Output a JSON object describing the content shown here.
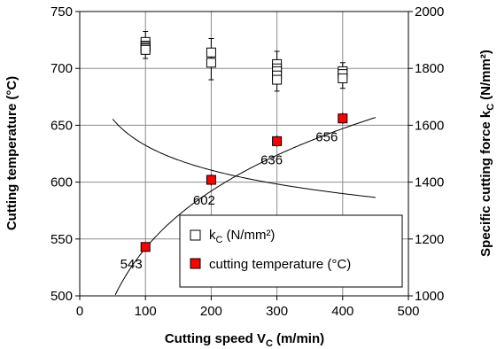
{
  "chart_data": {
    "type": "scatter",
    "xlabel": "Cutting speed V",
    "xlabel_sub": "C",
    "xlabel_unit": "(m/min)",
    "ylabel_left": "Cutting temperature (°C)",
    "ylabel_right": "Specific cutting force k",
    "ylabel_right_sub": "C",
    "ylabel_right_unit": "(N/mm²)",
    "xlim": [
      0,
      500
    ],
    "xticks": [
      "0",
      "100",
      "200",
      "300",
      "400",
      "500"
    ],
    "ylim_left": [
      500,
      750
    ],
    "yticks_left": [
      "500",
      "550",
      "600",
      "650",
      "700",
      "750"
    ],
    "ylim_right": [
      1000,
      2000
    ],
    "yticks_right": [
      "1000",
      "1200",
      "1400",
      "1600",
      "1800",
      "2000"
    ],
    "grid": true,
    "legend_placement": "bottom-right",
    "series": [
      {
        "name": "k",
        "name_sub": "C",
        "name_unit": "(N/mm²)",
        "axis": "right",
        "marker": "open-square",
        "color": "#000000",
        "points": [
          {
            "x": 100,
            "values": [
              1893,
              1880,
              1875,
              1870,
              1865
            ],
            "whisker": [
              1835,
              1930
            ]
          },
          {
            "x": 200,
            "values": [
              1856,
              1820
            ],
            "whisker": [
              1760,
              1905
            ]
          },
          {
            "x": 300,
            "values": [
              1815,
              1800,
              1790,
              1775,
              1760
            ],
            "whisker": [
              1720,
              1860
            ]
          },
          {
            "x": 400,
            "values": [
              1790,
              1780,
              1765
            ],
            "whisker": [
              1730,
              1820
            ]
          }
        ],
        "trendline": {
          "x_range": [
            50,
            450
          ],
          "a": 2260,
          "b": -0.0848
        }
      },
      {
        "name": "cutting temperature (°C)",
        "axis": "left",
        "marker": "filled-square",
        "color": "#ff0000",
        "points": [
          {
            "x": 100,
            "y": 543,
            "label": "543",
            "whisker": [
              539,
              547
            ]
          },
          {
            "x": 200,
            "y": 602,
            "label": "602",
            "whisker": [
              597,
              607
            ]
          },
          {
            "x": 300,
            "y": 636,
            "label": "636",
            "whisker": [
              631,
              641
            ]
          },
          {
            "x": 400,
            "y": 656,
            "label": "656",
            "whisker": [
              651,
              661
            ]
          }
        ],
        "trendline": {
          "x_range": [
            50,
            450
          ],
          "a": 300.7,
          "b": 0.1279
        }
      }
    ]
  }
}
